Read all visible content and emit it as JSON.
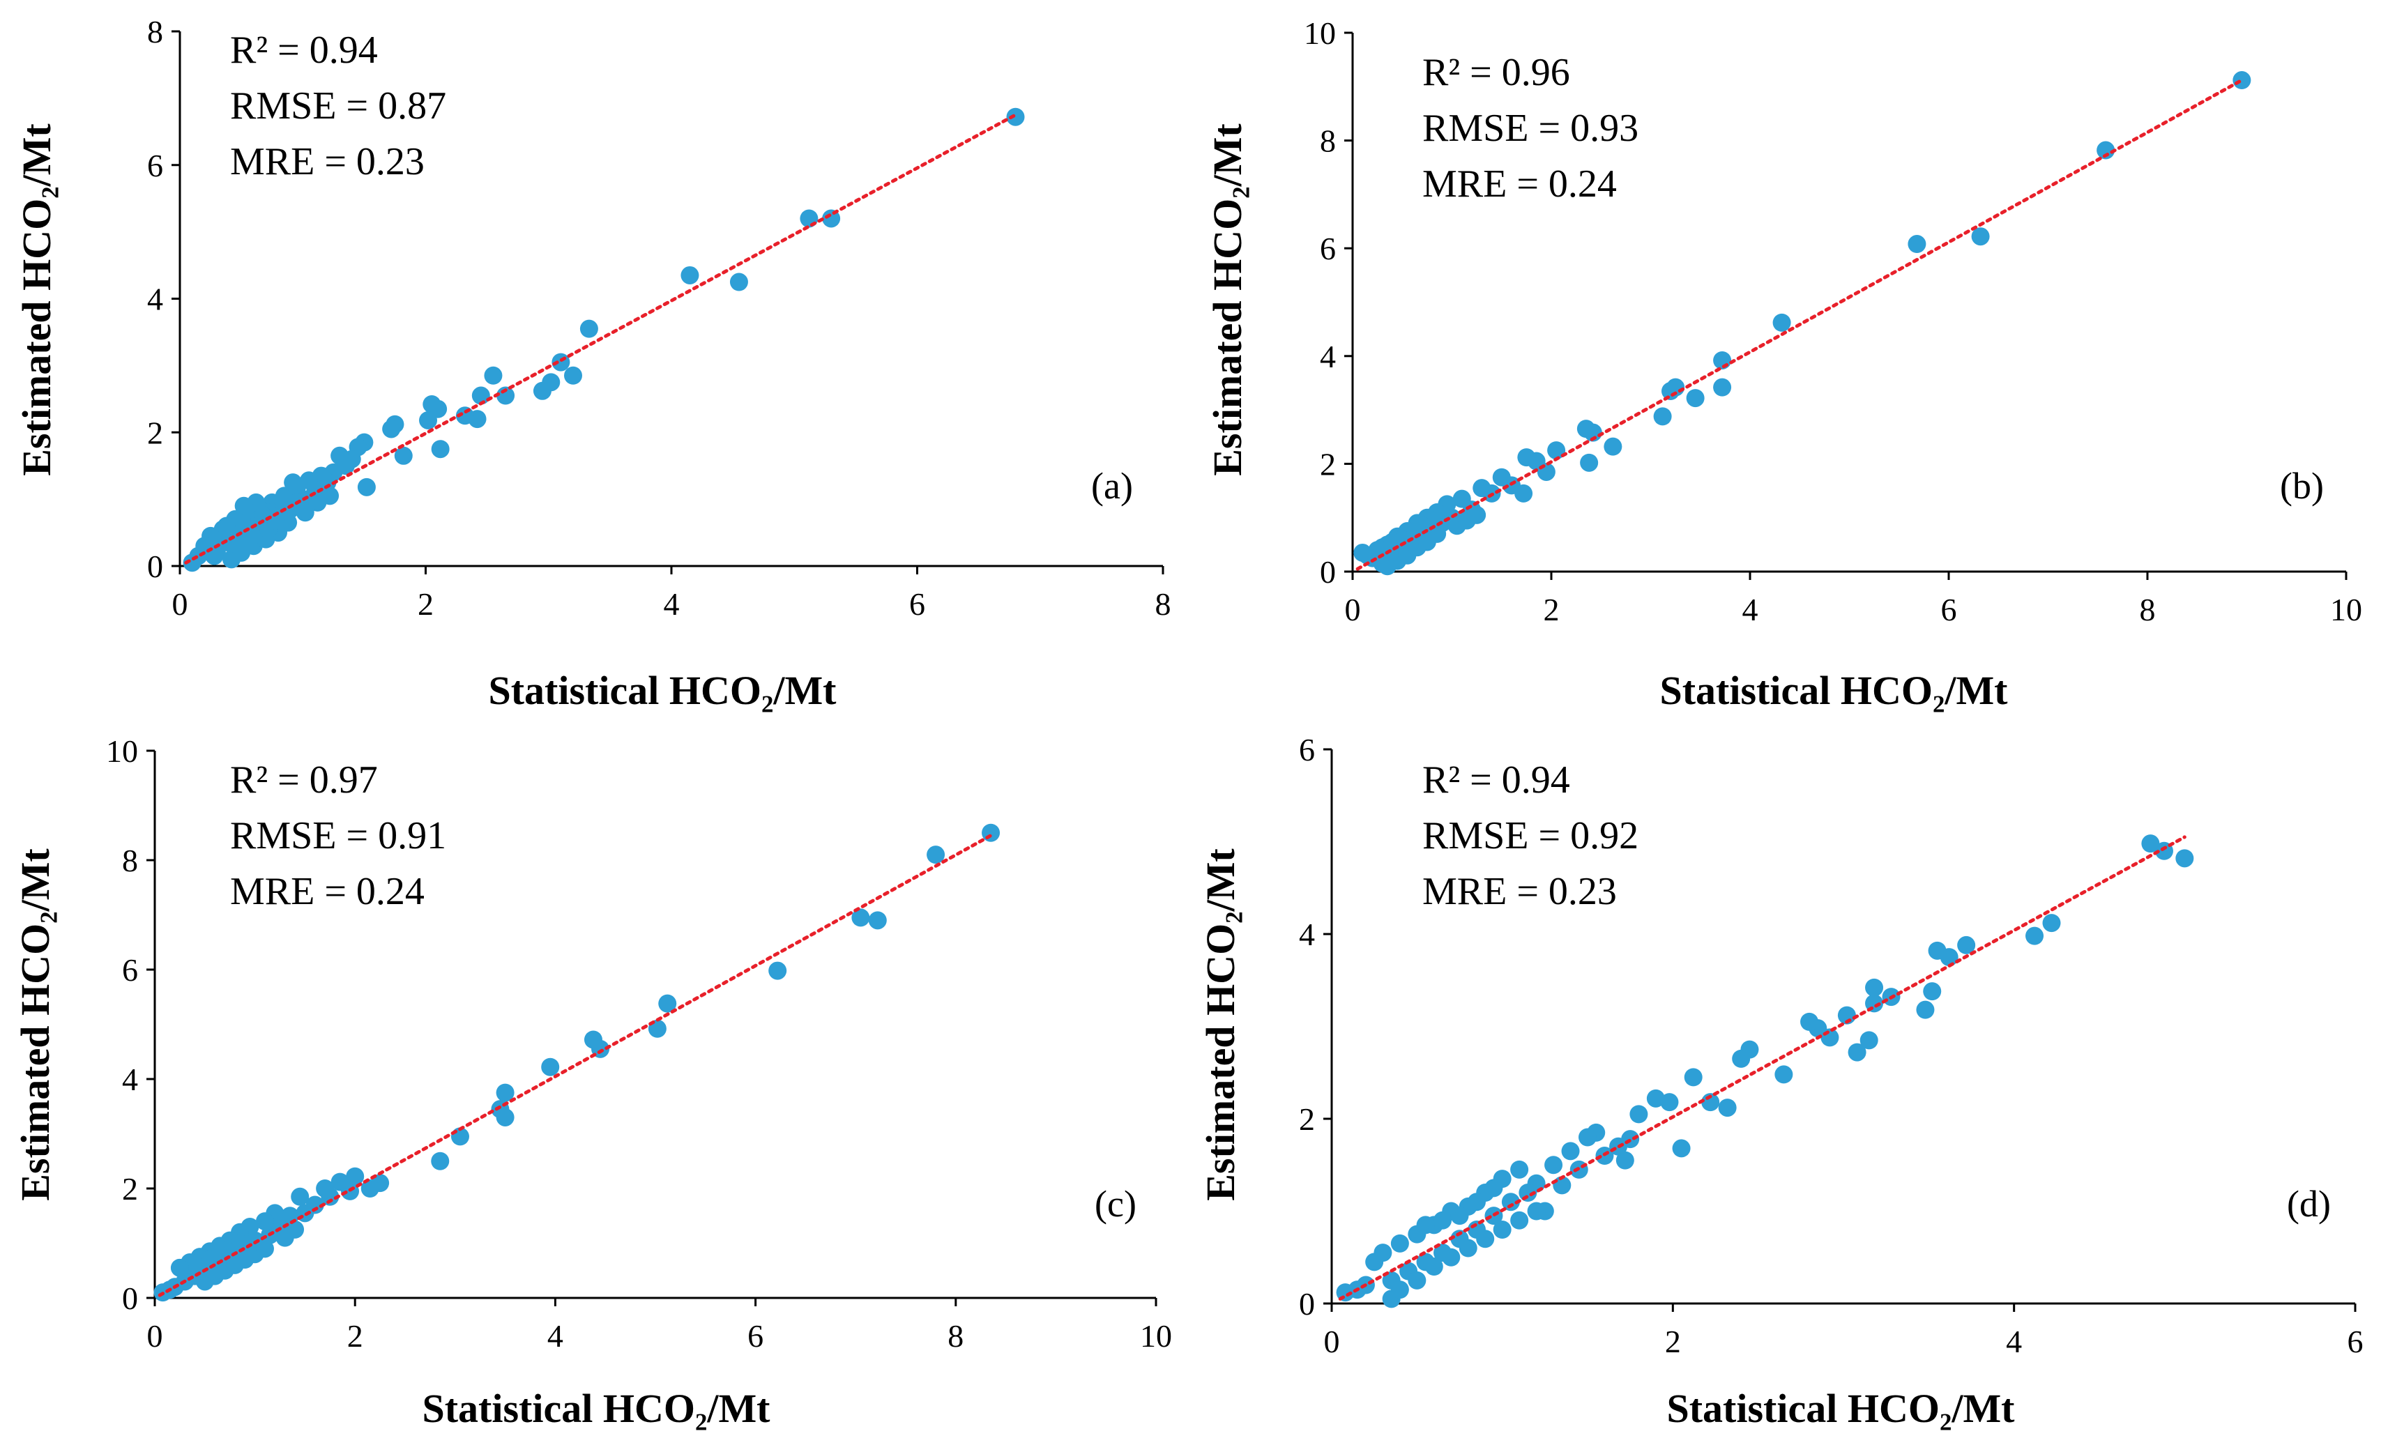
{
  "chart_data": [
    {
      "type": "scatter",
      "panel_label": "(a)",
      "xlabel": "Statistical HCO₂/Mt",
      "ylabel": "Estimated HCO₂/Mt",
      "xlim": [
        0,
        8
      ],
      "ylim": [
        0,
        8
      ],
      "xticks": [
        "0",
        "2",
        "4",
        "6",
        "8"
      ],
      "yticks": [
        "0",
        "2",
        "4",
        "6",
        "8"
      ],
      "stats": [
        "R² = 0.94",
        "RMSE = 0.87",
        "MRE = 0.23"
      ],
      "marker_color": "#2e9fd6",
      "trendline_color": "#e8202a",
      "trendline": {
        "x": [
          0.05,
          6.8
        ],
        "y": [
          0.05,
          6.75
        ]
      },
      "points": [
        [
          6.8,
          6.72
        ],
        [
          5.12,
          5.2
        ],
        [
          5.3,
          5.2
        ],
        [
          4.15,
          4.35
        ],
        [
          4.55,
          4.25
        ],
        [
          3.33,
          3.55
        ],
        [
          3.2,
          2.85
        ],
        [
          3.1,
          3.05
        ],
        [
          2.95,
          2.62
        ],
        [
          3.02,
          2.75
        ],
        [
          2.55,
          2.85
        ],
        [
          2.65,
          2.55
        ],
        [
          2.45,
          2.55
        ],
        [
          2.42,
          2.2
        ],
        [
          2.32,
          2.25
        ],
        [
          2.1,
          2.35
        ],
        [
          2.05,
          2.42
        ],
        [
          2.02,
          2.18
        ],
        [
          2.12,
          1.75
        ],
        [
          1.82,
          1.65
        ],
        [
          1.75,
          2.12
        ],
        [
          1.72,
          2.05
        ],
        [
          1.5,
          1.85
        ],
        [
          1.45,
          1.78
        ],
        [
          1.52,
          1.18
        ],
        [
          1.4,
          1.6
        ],
        [
          1.3,
          1.65
        ],
        [
          1.35,
          1.5
        ],
        [
          1.25,
          1.4
        ],
        [
          1.2,
          1.25
        ],
        [
          1.15,
          1.35
        ],
        [
          1.1,
          1.1
        ],
        [
          1.05,
          1.28
        ],
        [
          1.0,
          1.0
        ],
        [
          0.95,
          1.15
        ],
        [
          0.9,
          0.85
        ],
        [
          0.85,
          1.05
        ],
        [
          0.8,
          0.75
        ],
        [
          0.75,
          0.95
        ],
        [
          0.7,
          0.62
        ],
        [
          0.65,
          0.85
        ],
        [
          0.6,
          0.55
        ],
        [
          0.55,
          0.8
        ],
        [
          0.5,
          0.45
        ],
        [
          0.45,
          0.7
        ],
        [
          0.4,
          0.35
        ],
        [
          0.35,
          0.55
        ],
        [
          0.3,
          0.2
        ],
        [
          0.25,
          0.45
        ],
        [
          0.2,
          0.3
        ],
        [
          0.15,
          0.15
        ],
        [
          0.1,
          0.05
        ],
        [
          0.42,
          0.1
        ],
        [
          0.5,
          0.2
        ],
        [
          0.6,
          0.3
        ],
        [
          0.7,
          0.4
        ],
        [
          0.8,
          0.5
        ],
        [
          0.55,
          0.65
        ],
        [
          0.65,
          0.7
        ],
        [
          0.75,
          0.8
        ],
        [
          0.85,
          0.9
        ],
        [
          0.95,
          0.95
        ],
        [
          1.02,
          0.8
        ],
        [
          0.88,
          0.65
        ],
        [
          0.72,
          0.55
        ],
        [
          0.35,
          0.4
        ],
        [
          0.48,
          0.55
        ],
        [
          0.58,
          0.48
        ],
        [
          0.68,
          0.75
        ],
        [
          0.78,
          0.68
        ],
        [
          1.12,
          0.95
        ],
        [
          1.22,
          1.05
        ],
        [
          0.92,
          1.25
        ],
        [
          0.62,
          0.95
        ],
        [
          0.52,
          0.9
        ],
        [
          0.38,
          0.6
        ],
        [
          0.28,
          0.15
        ]
      ]
    },
    {
      "type": "scatter",
      "panel_label": "(b)",
      "xlabel": "Statistical HCO₂/Mt",
      "ylabel": "Estimated HCO₂/Mt",
      "xlim": [
        0,
        10
      ],
      "ylim": [
        0,
        10
      ],
      "xticks": [
        "0",
        "2",
        "4",
        "6",
        "8",
        "10"
      ],
      "yticks": [
        "0",
        "2",
        "4",
        "6",
        "8",
        "10"
      ],
      "stats": [
        "R² = 0.96",
        "RMSE = 0.93",
        "MRE = 0.24"
      ],
      "marker_color": "#2e9fd6",
      "trendline_color": "#e8202a",
      "trendline": {
        "x": [
          0.05,
          8.95
        ],
        "y": [
          0.05,
          9.12
        ]
      },
      "points": [
        [
          8.95,
          9.12
        ],
        [
          7.58,
          7.82
        ],
        [
          5.68,
          6.08
        ],
        [
          6.32,
          6.22
        ],
        [
          4.32,
          4.62
        ],
        [
          3.72,
          3.92
        ],
        [
          3.72,
          3.42
        ],
        [
          3.45,
          3.22
        ],
        [
          3.25,
          3.42
        ],
        [
          3.2,
          3.35
        ],
        [
          3.12,
          2.88
        ],
        [
          2.62,
          2.32
        ],
        [
          2.42,
          2.58
        ],
        [
          2.35,
          2.65
        ],
        [
          2.38,
          2.02
        ],
        [
          2.05,
          2.25
        ],
        [
          1.95,
          1.85
        ],
        [
          1.85,
          2.05
        ],
        [
          1.75,
          2.12
        ],
        [
          1.72,
          1.45
        ],
        [
          1.6,
          1.6
        ],
        [
          1.5,
          1.75
        ],
        [
          1.4,
          1.45
        ],
        [
          1.3,
          1.55
        ],
        [
          1.2,
          1.15
        ],
        [
          1.1,
          1.35
        ],
        [
          1.0,
          1.0
        ],
        [
          0.95,
          1.25
        ],
        [
          0.9,
          0.9
        ],
        [
          0.85,
          1.1
        ],
        [
          0.8,
          0.75
        ],
        [
          0.75,
          1.0
        ],
        [
          0.7,
          0.65
        ],
        [
          0.65,
          0.9
        ],
        [
          0.6,
          0.5
        ],
        [
          0.55,
          0.75
        ],
        [
          0.5,
          0.4
        ],
        [
          0.45,
          0.65
        ],
        [
          0.4,
          0.3
        ],
        [
          0.35,
          0.5
        ],
        [
          0.3,
          0.15
        ],
        [
          0.25,
          0.4
        ],
        [
          0.2,
          0.25
        ],
        [
          0.15,
          0.3
        ],
        [
          0.1,
          0.35
        ],
        [
          0.35,
          0.1
        ],
        [
          0.45,
          0.2
        ],
        [
          0.55,
          0.3
        ],
        [
          0.65,
          0.45
        ],
        [
          0.75,
          0.55
        ],
        [
          0.85,
          0.7
        ],
        [
          1.05,
          0.85
        ],
        [
          1.15,
          0.95
        ],
        [
          1.25,
          1.05
        ],
        [
          0.3,
          0.45
        ],
        [
          0.5,
          0.6
        ],
        [
          0.7,
          0.85
        ],
        [
          0.9,
          1.05
        ],
        [
          0.4,
          0.55
        ]
      ]
    },
    {
      "type": "scatter",
      "panel_label": "(c)",
      "xlabel": "Statistical HCO₂/Mt",
      "ylabel": "Estimated HCO₂/Mt",
      "xlim": [
        0,
        10
      ],
      "ylim": [
        0,
        10
      ],
      "xticks": [
        "0",
        "2",
        "4",
        "6",
        "8",
        "10"
      ],
      "yticks": [
        "0",
        "2",
        "4",
        "6",
        "8",
        "10"
      ],
      "stats": [
        "R² = 0.97",
        "RMSE = 0.91",
        "MRE = 0.24"
      ],
      "marker_color": "#2e9fd6",
      "trendline_color": "#e8202a",
      "trendline": {
        "x": [
          0.05,
          8.35
        ],
        "y": [
          0.05,
          8.45
        ]
      },
      "points": [
        [
          8.35,
          8.5
        ],
        [
          7.8,
          8.1
        ],
        [
          7.05,
          6.95
        ],
        [
          7.22,
          6.9
        ],
        [
          6.22,
          5.98
        ],
        [
          5.12,
          5.38
        ],
        [
          5.02,
          4.92
        ],
        [
          4.38,
          4.72
        ],
        [
          4.45,
          4.55
        ],
        [
          3.95,
          4.22
        ],
        [
          3.5,
          3.75
        ],
        [
          3.45,
          3.45
        ],
        [
          3.5,
          3.3
        ],
        [
          3.05,
          2.95
        ],
        [
          2.85,
          2.5
        ],
        [
          2.25,
          2.1
        ],
        [
          2.15,
          2.0
        ],
        [
          2.0,
          2.22
        ],
        [
          1.95,
          1.95
        ],
        [
          1.85,
          2.12
        ],
        [
          1.75,
          1.85
        ],
        [
          1.7,
          2.0
        ],
        [
          1.6,
          1.7
        ],
        [
          1.5,
          1.55
        ],
        [
          1.45,
          1.85
        ],
        [
          1.4,
          1.25
        ],
        [
          1.35,
          1.5
        ],
        [
          1.25,
          1.35
        ],
        [
          1.2,
          1.55
        ],
        [
          1.15,
          1.15
        ],
        [
          1.1,
          1.4
        ],
        [
          1.0,
          1.05
        ],
        [
          0.95,
          1.3
        ],
        [
          0.9,
          0.9
        ],
        [
          0.85,
          1.2
        ],
        [
          0.8,
          0.8
        ],
        [
          0.75,
          1.05
        ],
        [
          0.7,
          0.7
        ],
        [
          0.65,
          0.95
        ],
        [
          0.6,
          0.6
        ],
        [
          0.55,
          0.85
        ],
        [
          0.5,
          0.5
        ],
        [
          0.45,
          0.75
        ],
        [
          0.4,
          0.4
        ],
        [
          0.35,
          0.65
        ],
        [
          0.3,
          0.3
        ],
        [
          0.25,
          0.55
        ],
        [
          0.2,
          0.2
        ],
        [
          0.15,
          0.15
        ],
        [
          0.08,
          0.1
        ],
        [
          0.5,
          0.3
        ],
        [
          0.6,
          0.4
        ],
        [
          0.7,
          0.5
        ],
        [
          0.8,
          0.6
        ],
        [
          0.9,
          0.7
        ],
        [
          1.0,
          0.8
        ],
        [
          1.1,
          0.9
        ],
        [
          1.3,
          1.1
        ],
        [
          0.55,
          0.7
        ],
        [
          0.65,
          0.8
        ],
        [
          0.75,
          0.9
        ],
        [
          0.85,
          1.0
        ]
      ]
    },
    {
      "type": "scatter",
      "panel_label": "(d)",
      "xlabel": "Statistical HCO₂/Mt",
      "ylabel": "Estimated HCO₂/Mt",
      "xlim": [
        0,
        6
      ],
      "ylim": [
        0,
        6
      ],
      "xticks": [
        "0",
        "2",
        "4",
        "6"
      ],
      "yticks": [
        "0",
        "2",
        "4",
        "6"
      ],
      "stats": [
        "R² = 0.94",
        "RMSE = 0.92",
        "MRE = 0.23"
      ],
      "marker_color": "#2e9fd6",
      "trendline_color": "#e8202a",
      "trendline": {
        "x": [
          0.05,
          5.0
        ],
        "y": [
          0.05,
          5.05
        ]
      },
      "points": [
        [
          4.8,
          4.98
        ],
        [
          4.88,
          4.9
        ],
        [
          5.0,
          4.82
        ],
        [
          4.22,
          4.12
        ],
        [
          4.12,
          3.98
        ],
        [
          3.72,
          3.88
        ],
        [
          3.62,
          3.75
        ],
        [
          3.55,
          3.82
        ],
        [
          3.52,
          3.38
        ],
        [
          3.48,
          3.18
        ],
        [
          3.28,
          3.32
        ],
        [
          3.18,
          3.42
        ],
        [
          3.18,
          3.25
        ],
        [
          3.15,
          2.85
        ],
        [
          3.08,
          2.72
        ],
        [
          3.02,
          3.12
        ],
        [
          2.92,
          2.88
        ],
        [
          2.85,
          2.98
        ],
        [
          2.8,
          3.05
        ],
        [
          2.65,
          2.48
        ],
        [
          2.45,
          2.75
        ],
        [
          2.4,
          2.65
        ],
        [
          2.32,
          2.12
        ],
        [
          2.22,
          2.18
        ],
        [
          2.12,
          2.45
        ],
        [
          2.05,
          1.68
        ],
        [
          1.98,
          2.18
        ],
        [
          1.9,
          2.22
        ],
        [
          1.8,
          2.05
        ],
        [
          1.75,
          1.78
        ],
        [
          1.72,
          1.55
        ],
        [
          1.68,
          1.7
        ],
        [
          1.6,
          1.6
        ],
        [
          1.55,
          1.85
        ],
        [
          1.5,
          1.8
        ],
        [
          1.45,
          1.45
        ],
        [
          1.4,
          1.65
        ],
        [
          1.35,
          1.28
        ],
        [
          1.3,
          1.5
        ],
        [
          1.25,
          1.0
        ],
        [
          1.2,
          1.3
        ],
        [
          1.15,
          1.2
        ],
        [
          1.1,
          1.45
        ],
        [
          1.05,
          1.1
        ],
        [
          1.0,
          1.35
        ],
        [
          0.95,
          0.95
        ],
        [
          0.9,
          1.2
        ],
        [
          0.85,
          0.8
        ],
        [
          0.8,
          1.05
        ],
        [
          0.75,
          0.7
        ],
        [
          0.7,
          1.0
        ],
        [
          0.65,
          0.55
        ],
        [
          0.6,
          0.85
        ],
        [
          0.55,
          0.45
        ],
        [
          0.5,
          0.75
        ],
        [
          0.45,
          0.35
        ],
        [
          0.4,
          0.65
        ],
        [
          0.35,
          0.25
        ],
        [
          0.3,
          0.55
        ],
        [
          0.25,
          0.45
        ],
        [
          0.2,
          0.2
        ],
        [
          0.15,
          0.15
        ],
        [
          0.08,
          0.12
        ],
        [
          0.35,
          0.05
        ],
        [
          0.4,
          0.15
        ],
        [
          0.5,
          0.25
        ],
        [
          0.6,
          0.4
        ],
        [
          0.7,
          0.5
        ],
        [
          0.8,
          0.6
        ],
        [
          0.9,
          0.7
        ],
        [
          1.0,
          0.8
        ],
        [
          1.1,
          0.9
        ],
        [
          1.2,
          1.0
        ],
        [
          0.55,
          0.85
        ],
        [
          0.65,
          0.9
        ],
        [
          0.75,
          0.95
        ],
        [
          0.85,
          1.1
        ],
        [
          0.95,
          1.25
        ]
      ]
    }
  ]
}
